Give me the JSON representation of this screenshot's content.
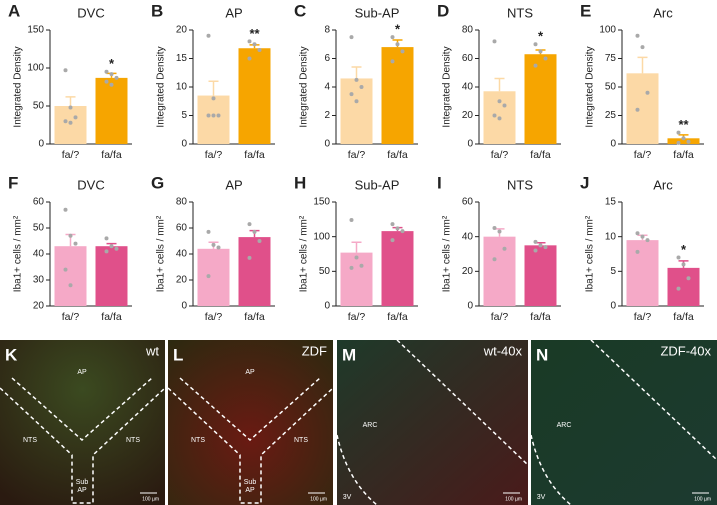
{
  "chart_data": [
    {
      "type": "bar",
      "letter": "A",
      "title": "DVC",
      "ylabel": "Integrated Density",
      "categories": [
        "fa/?",
        "fa/fa"
      ],
      "values": [
        50,
        87
      ],
      "errors": [
        12,
        6
      ],
      "points": [
        [
          97,
          48,
          35,
          30,
          28
        ],
        [
          95,
          92,
          87,
          82,
          78
        ]
      ],
      "annotations": [
        null,
        "*"
      ],
      "colors": [
        "#fcd9a6",
        "#f6a500"
      ],
      "ylim": [
        0,
        150
      ],
      "yticks": [
        0,
        50,
        100,
        150
      ]
    },
    {
      "type": "bar",
      "letter": "B",
      "title": "AP",
      "ylabel": "Integrated Density",
      "categories": [
        "fa/?",
        "fa/fa"
      ],
      "values": [
        8.5,
        16.8
      ],
      "errors": [
        2.5,
        0.6
      ],
      "points": [
        [
          19,
          8,
          5,
          5,
          5
        ],
        [
          18,
          17.5,
          16.5,
          15
        ]
      ],
      "annotations": [
        null,
        "**"
      ],
      "colors": [
        "#fcd9a6",
        "#f6a500"
      ],
      "ylim": [
        0,
        20
      ],
      "yticks": [
        0,
        5,
        10,
        15,
        20
      ]
    },
    {
      "type": "bar",
      "letter": "C",
      "title": "Sub-AP",
      "ylabel": "Integrated Density",
      "categories": [
        "fa/?",
        "fa/fa"
      ],
      "values": [
        4.6,
        6.8
      ],
      "errors": [
        0.8,
        0.5
      ],
      "points": [
        [
          7.5,
          4.5,
          4,
          3.5,
          3
        ],
        [
          7.5,
          7,
          6.5,
          5.8
        ]
      ],
      "annotations": [
        null,
        "*"
      ],
      "colors": [
        "#fcd9a6",
        "#f6a500"
      ],
      "ylim": [
        0,
        8
      ],
      "yticks": [
        0,
        2,
        4,
        6,
        8
      ]
    },
    {
      "type": "bar",
      "letter": "D",
      "title": "NTS",
      "ylabel": "Integrated Density",
      "categories": [
        "fa/?",
        "fa/fa"
      ],
      "values": [
        37,
        63
      ],
      "errors": [
        9,
        3
      ],
      "points": [
        [
          72,
          30,
          27,
          20,
          18
        ],
        [
          70,
          65,
          60,
          55
        ]
      ],
      "annotations": [
        null,
        "*"
      ],
      "colors": [
        "#fcd9a6",
        "#f6a500"
      ],
      "ylim": [
        0,
        80
      ],
      "yticks": [
        0,
        20,
        40,
        60,
        80
      ]
    },
    {
      "type": "bar",
      "letter": "E",
      "title": "Arc",
      "ylabel": "Integrated Density",
      "categories": [
        "fa/?",
        "fa/fa"
      ],
      "values": [
        62,
        5
      ],
      "errors": [
        14,
        3
      ],
      "points": [
        [
          95,
          85,
          45,
          30
        ],
        [
          10,
          5,
          2,
          1
        ]
      ],
      "annotations": [
        null,
        "**"
      ],
      "colors": [
        "#fcd9a6",
        "#f6a500"
      ],
      "ylim": [
        0,
        100
      ],
      "yticks": [
        0,
        25,
        50,
        75,
        100
      ]
    },
    {
      "type": "bar",
      "letter": "F",
      "title": "DVC",
      "ylabel": "Iba1+ cells / mm²",
      "categories": [
        "fa/?",
        "fa/fa"
      ],
      "values": [
        43,
        43
      ],
      "errors": [
        4.5,
        1
      ],
      "points": [
        [
          57,
          47,
          44,
          34,
          28
        ],
        [
          46,
          43,
          42,
          41
        ]
      ],
      "annotations": [
        null,
        null
      ],
      "colors": [
        "#f5a9c7",
        "#e0508a"
      ],
      "ylim": [
        20,
        60
      ],
      "yticks": [
        20,
        30,
        40,
        50,
        60
      ]
    },
    {
      "type": "bar",
      "letter": "G",
      "title": "AP",
      "ylabel": "Iba1+ cells / mm²",
      "categories": [
        "fa/?",
        "fa/fa"
      ],
      "values": [
        44,
        53
      ],
      "errors": [
        5,
        5
      ],
      "points": [
        [
          57,
          47,
          45,
          23
        ],
        [
          63,
          57,
          50,
          37
        ]
      ],
      "annotations": [
        null,
        null
      ],
      "colors": [
        "#f5a9c7",
        "#e0508a"
      ],
      "ylim": [
        0,
        80
      ],
      "yticks": [
        0,
        20,
        40,
        60,
        80
      ]
    },
    {
      "type": "bar",
      "letter": "H",
      "title": "Sub-AP",
      "ylabel": "Iba1+ cells / mm²",
      "categories": [
        "fa/?",
        "fa/fa"
      ],
      "values": [
        77,
        108
      ],
      "errors": [
        15,
        5
      ],
      "points": [
        [
          124,
          70,
          58,
          55
        ],
        [
          118,
          112,
          108,
          95
        ]
      ],
      "annotations": [
        null,
        null
      ],
      "colors": [
        "#f5a9c7",
        "#e0508a"
      ],
      "ylim": [
        0,
        150
      ],
      "yticks": [
        0,
        50,
        100,
        150
      ]
    },
    {
      "type": "bar",
      "letter": "I",
      "title": "NTS",
      "ylabel": "Iba1+ cells / mm²",
      "categories": [
        "fa/?",
        "fa/fa"
      ],
      "values": [
        40,
        35
      ],
      "errors": [
        4.5,
        1.5
      ],
      "points": [
        [
          45,
          43,
          33,
          27
        ],
        [
          37,
          35,
          34,
          32
        ]
      ],
      "annotations": [
        null,
        null
      ],
      "colors": [
        "#f5a9c7",
        "#e0508a"
      ],
      "ylim": [
        0,
        60
      ],
      "yticks": [
        0,
        20,
        40,
        60
      ]
    },
    {
      "type": "bar",
      "letter": "J",
      "title": "Arc",
      "ylabel": "Iba1+ cells / mm²",
      "categories": [
        "fa/?",
        "fa/fa"
      ],
      "values": [
        9.5,
        5.5
      ],
      "errors": [
        0.7,
        1
      ],
      "points": [
        [
          10.5,
          10,
          9.5,
          7.8
        ],
        [
          7,
          6,
          4,
          2.5
        ]
      ],
      "annotations": [
        null,
        "*"
      ],
      "colors": [
        "#f5a9c7",
        "#e0508a"
      ],
      "ylim": [
        0,
        15
      ],
      "yticks": [
        0,
        5,
        10,
        15
      ]
    }
  ],
  "images": [
    {
      "letter": "K",
      "label": "wt",
      "regions": [
        "AP",
        "NTS",
        "NTS",
        "Sub",
        "AP"
      ],
      "scale": "100 µm"
    },
    {
      "letter": "L",
      "label": "ZDF",
      "regions": [
        "AP",
        "NTS",
        "NTS",
        "Sub",
        "AP"
      ],
      "scale": "100 µm"
    },
    {
      "letter": "M",
      "label": "wt-40x",
      "regions": [
        "ARC",
        "3V"
      ],
      "scale": "100 µm"
    },
    {
      "letter": "N",
      "label": "ZDF-40x",
      "regions": [
        "ARC",
        "3V"
      ],
      "scale": "100 µm"
    }
  ]
}
